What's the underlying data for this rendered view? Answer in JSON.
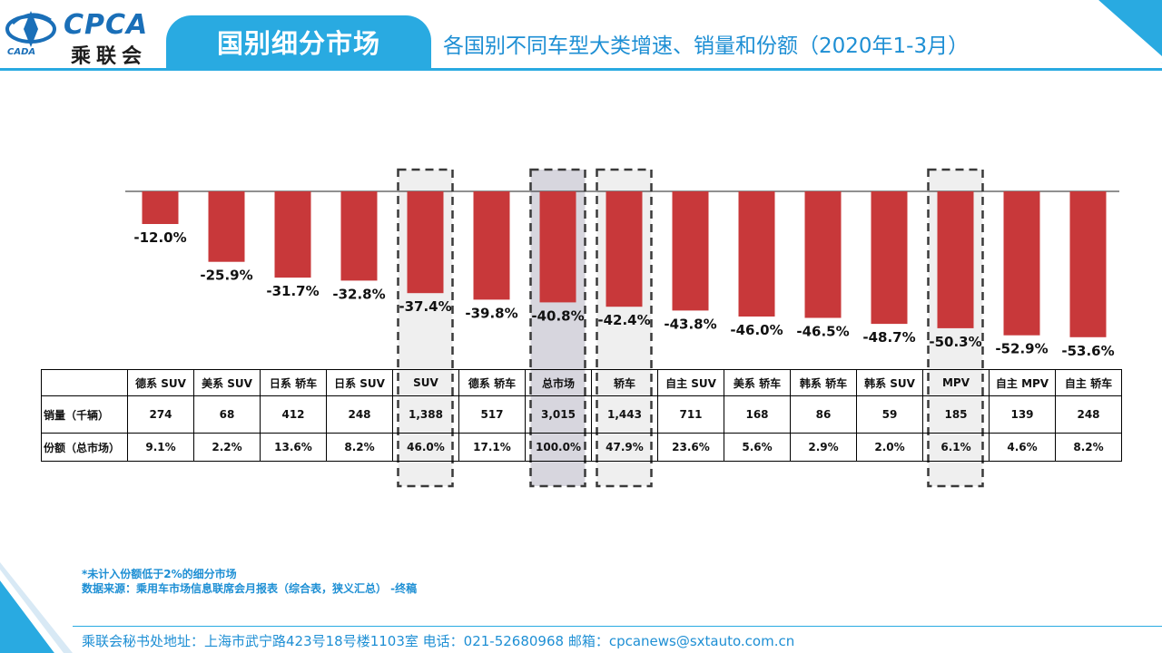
{
  "header": {
    "logo_text": "CPCA",
    "logo_cn": "乘联会",
    "logo_sub": "CADA",
    "section_title": "国别细分市场",
    "subtitle": "各国别不同车型大类增速、销量和份额（2020年1-3月）"
  },
  "colors": {
    "accent": "#29aae1",
    "bar": "#c8383a",
    "text_blue": "#1e8fd4"
  },
  "chart_data": {
    "type": "bar",
    "categories": [
      "德系 SUV",
      "美系 SUV",
      "日系 轿车",
      "日系 SUV",
      "SUV",
      "德系 轿车",
      "总市场",
      "轿车",
      "自主 SUV",
      "美系 轿车",
      "韩系 轿车",
      "韩系 SUV",
      "MPV",
      "自主 MPV",
      "自主 轿车"
    ],
    "values": [
      -12.0,
      -25.9,
      -31.7,
      -32.8,
      -37.4,
      -39.8,
      -40.8,
      -42.4,
      -43.8,
      -46.0,
      -46.5,
      -48.7,
      -50.3,
      -52.9,
      -53.6
    ],
    "labels": [
      "-12.0%",
      "-25.9%",
      "-31.7%",
      "-32.8%",
      "-37.4%",
      "-39.8%",
      "-40.8%",
      "-42.4%",
      "-43.8%",
      "-46.0%",
      "-46.5%",
      "-48.7%",
      "-50.3%",
      "-52.9%",
      "-53.6%"
    ],
    "ylim": [
      -60,
      0
    ],
    "highlighted": [
      "SUV",
      "总市场",
      "轿车",
      "MPV"
    ],
    "shaded": "总市场",
    "title": "",
    "xlabel": "",
    "ylabel": ""
  },
  "table": {
    "sales_label": "销量（千辆）",
    "share_label": "份额（总市场）",
    "sales": [
      "274",
      "68",
      "412",
      "248",
      "1,388",
      "517",
      "3,015",
      "1,443",
      "711",
      "168",
      "86",
      "59",
      "185",
      "139",
      "248"
    ],
    "share": [
      "9.1%",
      "2.2%",
      "13.6%",
      "8.2%",
      "46.0%",
      "17.1%",
      "100.0%",
      "47.9%",
      "23.6%",
      "5.6%",
      "2.9%",
      "2.0%",
      "6.1%",
      "4.6%",
      "8.2%"
    ]
  },
  "notes": {
    "note1": "*未计入份额低于2%的细分市场",
    "note2": "数据来源：乘用车市场信息联席会月报表（综合表，狭义汇总）  -终稿"
  },
  "footer": "乘联会秘书处地址：上海市武宁路423号18号楼1103室  电话：021-52680968   邮箱：cpcanews@sxtauto.com.cn"
}
